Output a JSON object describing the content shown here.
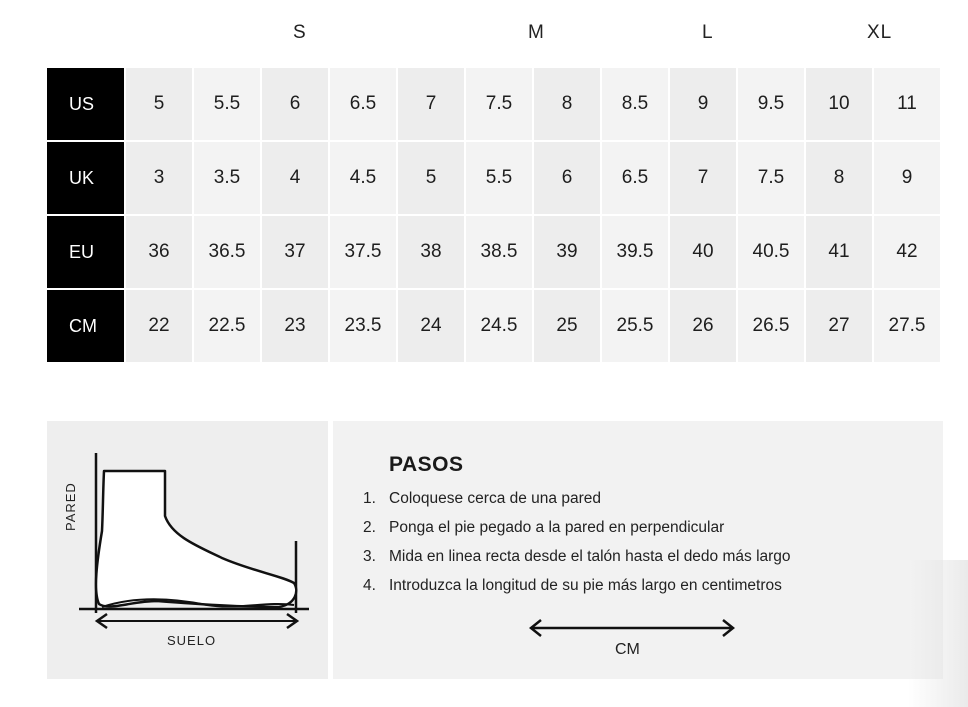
{
  "size_groups": [
    "S",
    "M",
    "L",
    "XL"
  ],
  "chart": {
    "rows": [
      {
        "label": "US",
        "values": [
          "5",
          "5.5",
          "6",
          "6.5",
          "7",
          "7.5",
          "8",
          "8.5",
          "9",
          "9.5",
          "10",
          "11"
        ]
      },
      {
        "label": "UK",
        "values": [
          "3",
          "3.5",
          "4",
          "4.5",
          "5",
          "5.5",
          "6",
          "6.5",
          "7",
          "7.5",
          "8",
          "9"
        ]
      },
      {
        "label": "EU",
        "values": [
          "36",
          "36.5",
          "37",
          "37.5",
          "38",
          "38.5",
          "39",
          "39.5",
          "40",
          "40.5",
          "41",
          "42"
        ]
      },
      {
        "label": "CM",
        "values": [
          "22",
          "22.5",
          "23",
          "23.5",
          "24",
          "24.5",
          "25",
          "25.5",
          "26",
          "26.5",
          "27",
          "27.5"
        ]
      }
    ]
  },
  "diagram": {
    "wall_label": "PARED",
    "floor_label": "SUELO"
  },
  "steps": {
    "title": "PASOS",
    "items": [
      {
        "num": "1.",
        "text": "Coloquese cerca de una pared"
      },
      {
        "num": "2.",
        "text": "Ponga el pie pegado a la pared en perpendicular"
      },
      {
        "num": "3.",
        "text": "Mida en linea recta desde el talón hasta el dedo más largo"
      },
      {
        "num": "4.",
        "text": "Introduzca la longitud de su pie más largo en centimetros"
      }
    ],
    "arrow_label": "CM"
  }
}
